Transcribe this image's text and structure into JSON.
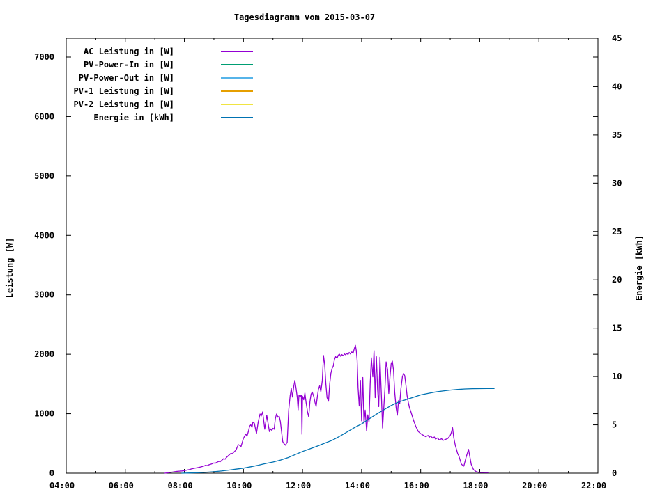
{
  "title": "Tagesdiagramm vom 2015-03-07",
  "axes": {
    "y1": {
      "label": "Leistung [W]"
    },
    "y2": {
      "label": "Energie [kWh]"
    }
  },
  "legend": {
    "items": [
      {
        "label": "AC Leistung in [W]",
        "color": "#9400d3"
      },
      {
        "label": "PV-Power-In in [W]",
        "color": "#009e73"
      },
      {
        "label": "PV-Power-Out in [W]",
        "color": "#56b4e9"
      },
      {
        "label": "PV-1 Leistung in [W]",
        "color": "#e69f00"
      },
      {
        "label": "PV-2 Leistung in [W]",
        "color": "#f0e442"
      },
      {
        "label": "Energie in [kWh]",
        "color": "#0072b2"
      }
    ]
  },
  "chart_data": {
    "type": "line",
    "title": "Tagesdiagramm vom 2015-03-07",
    "grid": false,
    "legend_position": "top-left-inside",
    "x_axis": {
      "label": "",
      "range": [
        4,
        22
      ],
      "ticks": [
        {
          "v": 4,
          "label": "04:00"
        },
        {
          "v": 6,
          "label": "06:00"
        },
        {
          "v": 8,
          "label": "08:00"
        },
        {
          "v": 10,
          "label": "10:00"
        },
        {
          "v": 12,
          "label": "12:00"
        },
        {
          "v": 14,
          "label": "14:00"
        },
        {
          "v": 16,
          "label": "16:00"
        },
        {
          "v": 18,
          "label": "18:00"
        },
        {
          "v": 20,
          "label": "20:00"
        },
        {
          "v": 22,
          "label": "22:00"
        }
      ],
      "minor_ticks": [
        5,
        7,
        9,
        11,
        13,
        15,
        17,
        19,
        21
      ]
    },
    "y1_axis": {
      "label": "Leistung [W]",
      "range": [
        0,
        7316
      ],
      "ticks": [
        {
          "v": 0,
          "label": "0"
        },
        {
          "v": 1000,
          "label": "1000"
        },
        {
          "v": 2000,
          "label": "2000"
        },
        {
          "v": 3000,
          "label": "3000"
        },
        {
          "v": 4000,
          "label": "4000"
        },
        {
          "v": 5000,
          "label": "5000"
        },
        {
          "v": 6000,
          "label": "6000"
        },
        {
          "v": 7000,
          "label": "7000"
        }
      ]
    },
    "y2_axis": {
      "label": "Energie [kWh]",
      "range": [
        0,
        45
      ],
      "ticks": [
        {
          "v": 0,
          "label": "0"
        },
        {
          "v": 5,
          "label": "5"
        },
        {
          "v": 10,
          "label": "10"
        },
        {
          "v": 15,
          "label": "15"
        },
        {
          "v": 20,
          "label": "20"
        },
        {
          "v": 25,
          "label": "25"
        },
        {
          "v": 30,
          "label": "30"
        },
        {
          "v": 35,
          "label": "35"
        },
        {
          "v": 40,
          "label": "40"
        },
        {
          "v": 45,
          "label": "45"
        }
      ]
    },
    "series": [
      {
        "name": "AC Leistung in [W]",
        "color": "#9400d3",
        "axis": "y1_axis",
        "points": [
          [
            7.33,
            0
          ],
          [
            7.42,
            6
          ],
          [
            7.5,
            12
          ],
          [
            7.58,
            18
          ],
          [
            7.67,
            25
          ],
          [
            7.75,
            30
          ],
          [
            7.83,
            34
          ],
          [
            7.92,
            38
          ],
          [
            8.0,
            42
          ],
          [
            8.08,
            52
          ],
          [
            8.17,
            62
          ],
          [
            8.25,
            72
          ],
          [
            8.33,
            82
          ],
          [
            8.42,
            90
          ],
          [
            8.5,
            98
          ],
          [
            8.58,
            108
          ],
          [
            8.67,
            122
          ],
          [
            8.72,
            133
          ],
          [
            8.77,
            127
          ],
          [
            8.83,
            140
          ],
          [
            8.92,
            155
          ],
          [
            9.0,
            172
          ],
          [
            9.04,
            165
          ],
          [
            9.08,
            178
          ],
          [
            9.17,
            200
          ],
          [
            9.21,
            192
          ],
          [
            9.25,
            210
          ],
          [
            9.33,
            245
          ],
          [
            9.38,
            235
          ],
          [
            9.42,
            262
          ],
          [
            9.5,
            300
          ],
          [
            9.58,
            335
          ],
          [
            9.62,
            325
          ],
          [
            9.67,
            350
          ],
          [
            9.75,
            390
          ],
          [
            9.79,
            440
          ],
          [
            9.83,
            480
          ],
          [
            9.88,
            465
          ],
          [
            9.92,
            450
          ],
          [
            10.0,
            585
          ],
          [
            10.08,
            660
          ],
          [
            10.12,
            620
          ],
          [
            10.17,
            705
          ],
          [
            10.21,
            790
          ],
          [
            10.25,
            815
          ],
          [
            10.29,
            770
          ],
          [
            10.32,
            860
          ],
          [
            10.37,
            840
          ],
          [
            10.44,
            665
          ],
          [
            10.5,
            860
          ],
          [
            10.56,
            995
          ],
          [
            10.6,
            960
          ],
          [
            10.65,
            1030
          ],
          [
            10.72,
            740
          ],
          [
            10.79,
            975
          ],
          [
            10.83,
            850
          ],
          [
            10.88,
            700
          ],
          [
            10.92,
            745
          ],
          [
            10.96,
            720
          ],
          [
            11.0,
            755
          ],
          [
            11.04,
            740
          ],
          [
            11.08,
            917
          ],
          [
            11.12,
            995
          ],
          [
            11.17,
            940
          ],
          [
            11.21,
            958
          ],
          [
            11.25,
            870
          ],
          [
            11.29,
            700
          ],
          [
            11.33,
            530
          ],
          [
            11.36,
            505
          ],
          [
            11.42,
            470
          ],
          [
            11.48,
            520
          ],
          [
            11.53,
            1053
          ],
          [
            11.58,
            1300
          ],
          [
            11.62,
            1425
          ],
          [
            11.66,
            1280
          ],
          [
            11.7,
            1450
          ],
          [
            11.74,
            1560
          ],
          [
            11.78,
            1430
          ],
          [
            11.82,
            1280
          ],
          [
            11.85,
            1065
          ],
          [
            11.88,
            1310
          ],
          [
            11.92,
            1290
          ],
          [
            11.96,
            1315
          ],
          [
            11.98,
            655
          ],
          [
            12.0,
            1295
          ],
          [
            12.04,
            1235
          ],
          [
            12.08,
            1350
          ],
          [
            12.12,
            1190
          ],
          [
            12.17,
            1030
          ],
          [
            12.21,
            945
          ],
          [
            12.25,
            1200
          ],
          [
            12.29,
            1330
          ],
          [
            12.33,
            1365
          ],
          [
            12.38,
            1290
          ],
          [
            12.42,
            1195
          ],
          [
            12.46,
            1120
          ],
          [
            12.5,
            1280
          ],
          [
            12.54,
            1415
          ],
          [
            12.58,
            1470
          ],
          [
            12.62,
            1370
          ],
          [
            12.67,
            1560
          ],
          [
            12.71,
            1980
          ],
          [
            12.75,
            1830
          ],
          [
            12.79,
            1500
          ],
          [
            12.83,
            1270
          ],
          [
            12.88,
            1210
          ],
          [
            12.92,
            1500
          ],
          [
            12.96,
            1680
          ],
          [
            13.0,
            1760
          ],
          [
            13.04,
            1800
          ],
          [
            13.08,
            1910
          ],
          [
            13.12,
            1960
          ],
          [
            13.17,
            1935
          ],
          [
            13.21,
            1985
          ],
          [
            13.25,
            2000
          ],
          [
            13.29,
            1965
          ],
          [
            13.33,
            1995
          ],
          [
            13.38,
            1975
          ],
          [
            13.42,
            2005
          ],
          [
            13.46,
            1990
          ],
          [
            13.5,
            2015
          ],
          [
            13.54,
            1995
          ],
          [
            13.58,
            2030
          ],
          [
            13.62,
            2005
          ],
          [
            13.67,
            2040
          ],
          [
            13.71,
            2015
          ],
          [
            13.75,
            2090
          ],
          [
            13.79,
            2150
          ],
          [
            13.82,
            2060
          ],
          [
            13.85,
            1900
          ],
          [
            13.88,
            1440
          ],
          [
            13.92,
            1130
          ],
          [
            13.96,
            1560
          ],
          [
            14.0,
            880
          ],
          [
            14.04,
            1610
          ],
          [
            14.08,
            840
          ],
          [
            14.12,
            1060
          ],
          [
            14.17,
            710
          ],
          [
            14.21,
            980
          ],
          [
            14.25,
            860
          ],
          [
            14.29,
            1500
          ],
          [
            14.33,
            1940
          ],
          [
            14.38,
            1620
          ],
          [
            14.42,
            2060
          ],
          [
            14.46,
            1270
          ],
          [
            14.5,
            1960
          ],
          [
            14.54,
            1420
          ],
          [
            14.58,
            1120
          ],
          [
            14.62,
            1950
          ],
          [
            14.67,
            1300
          ],
          [
            14.71,
            760
          ],
          [
            14.75,
            1090
          ],
          [
            14.79,
            1420
          ],
          [
            14.83,
            1870
          ],
          [
            14.88,
            1740
          ],
          [
            14.92,
            1340
          ],
          [
            14.96,
            1620
          ],
          [
            15.0,
            1840
          ],
          [
            15.04,
            1885
          ],
          [
            15.08,
            1730
          ],
          [
            15.12,
            1360
          ],
          [
            15.17,
            1090
          ],
          [
            15.21,
            975
          ],
          [
            15.25,
            1220
          ],
          [
            15.29,
            1170
          ],
          [
            15.33,
            1420
          ],
          [
            15.38,
            1620
          ],
          [
            15.42,
            1675
          ],
          [
            15.46,
            1640
          ],
          [
            15.5,
            1480
          ],
          [
            15.54,
            1300
          ],
          [
            15.58,
            1190
          ],
          [
            15.62,
            1100
          ],
          [
            15.67,
            1030
          ],
          [
            15.75,
            900
          ],
          [
            15.83,
            790
          ],
          [
            15.92,
            700
          ],
          [
            16.0,
            665
          ],
          [
            16.08,
            640
          ],
          [
            16.17,
            615
          ],
          [
            16.25,
            635
          ],
          [
            16.29,
            605
          ],
          [
            16.33,
            625
          ],
          [
            16.42,
            585
          ],
          [
            16.46,
            610
          ],
          [
            16.5,
            575
          ],
          [
            16.58,
            595
          ],
          [
            16.62,
            560
          ],
          [
            16.71,
            580
          ],
          [
            16.75,
            550
          ],
          [
            16.83,
            565
          ],
          [
            16.92,
            585
          ],
          [
            17.0,
            635
          ],
          [
            17.04,
            690
          ],
          [
            17.08,
            765
          ],
          [
            17.12,
            600
          ],
          [
            17.17,
            470
          ],
          [
            17.25,
            330
          ],
          [
            17.29,
            295
          ],
          [
            17.38,
            150
          ],
          [
            17.46,
            118
          ],
          [
            17.54,
            270
          ],
          [
            17.62,
            400
          ],
          [
            17.67,
            260
          ],
          [
            17.71,
            150
          ],
          [
            17.79,
            60
          ],
          [
            17.88,
            25
          ],
          [
            17.96,
            15
          ],
          [
            18.04,
            12
          ],
          [
            18.12,
            12
          ],
          [
            18.21,
            11
          ],
          [
            18.29,
            10
          ]
        ]
      },
      {
        "name": "Energie in [kWh]",
        "color": "#0072b2",
        "axis": "y2_axis",
        "points": [
          [
            7.9,
            0
          ],
          [
            8.2,
            0.02
          ],
          [
            8.5,
            0.06
          ],
          [
            8.8,
            0.11
          ],
          [
            9.0,
            0.15
          ],
          [
            9.25,
            0.22
          ],
          [
            9.5,
            0.32
          ],
          [
            9.75,
            0.42
          ],
          [
            10.0,
            0.52
          ],
          [
            10.25,
            0.66
          ],
          [
            10.5,
            0.82
          ],
          [
            10.75,
            1.0
          ],
          [
            11.0,
            1.15
          ],
          [
            11.25,
            1.35
          ],
          [
            11.5,
            1.6
          ],
          [
            11.75,
            1.92
          ],
          [
            12.0,
            2.25
          ],
          [
            12.25,
            2.52
          ],
          [
            12.5,
            2.8
          ],
          [
            12.75,
            3.1
          ],
          [
            13.0,
            3.4
          ],
          [
            13.25,
            3.8
          ],
          [
            13.5,
            4.25
          ],
          [
            13.75,
            4.7
          ],
          [
            14.0,
            5.1
          ],
          [
            14.25,
            5.6
          ],
          [
            14.5,
            6.1
          ],
          [
            14.75,
            6.55
          ],
          [
            15.0,
            7.0
          ],
          [
            15.25,
            7.35
          ],
          [
            15.5,
            7.6
          ],
          [
            15.75,
            7.85
          ],
          [
            16.0,
            8.1
          ],
          [
            16.25,
            8.25
          ],
          [
            16.5,
            8.4
          ],
          [
            16.75,
            8.5
          ],
          [
            17.0,
            8.6
          ],
          [
            17.25,
            8.66
          ],
          [
            17.5,
            8.71
          ],
          [
            17.75,
            8.74
          ],
          [
            18.0,
            8.75
          ],
          [
            18.25,
            8.76
          ],
          [
            18.5,
            8.76
          ]
        ]
      }
    ],
    "legend_only_series": [
      {
        "name": "PV-Power-In in [W]",
        "color": "#009e73"
      },
      {
        "name": "PV-Power-Out in [W]",
        "color": "#56b4e9"
      },
      {
        "name": "PV-1 Leistung in [W]",
        "color": "#e69f00"
      },
      {
        "name": "PV-2 Leistung in [W]",
        "color": "#f0e442"
      }
    ]
  }
}
